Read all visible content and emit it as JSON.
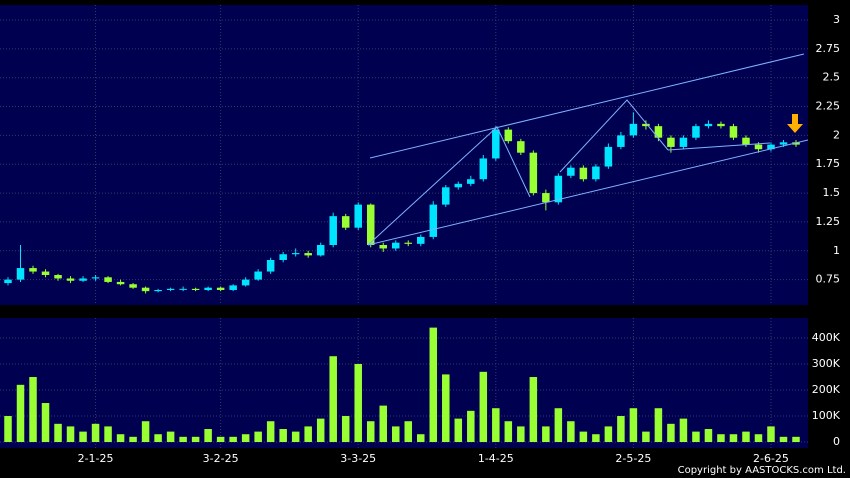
{
  "chart_data": [
    {
      "type": "candlestick",
      "categories": [
        null,
        null,
        null,
        null,
        null,
        null,
        null,
        "2-1-25",
        null,
        null,
        null,
        null,
        null,
        null,
        null,
        null,
        null,
        "3-2-25",
        null,
        null,
        null,
        null,
        null,
        null,
        null,
        null,
        null,
        null,
        "3-3-25",
        null,
        null,
        null,
        null,
        null,
        null,
        null,
        null,
        null,
        null,
        "1-4-25",
        null,
        null,
        null,
        null,
        null,
        null,
        null,
        null,
        null,
        null,
        "2-5-25",
        null,
        null,
        null,
        null,
        null,
        null,
        null,
        null,
        null,
        null,
        "2-6-25",
        null,
        null
      ],
      "open": [
        0.72,
        0.75,
        0.85,
        0.82,
        0.79,
        0.76,
        0.74,
        0.76,
        0.77,
        0.73,
        0.71,
        0.68,
        0.65,
        0.66,
        0.67,
        0.67,
        0.66,
        0.68,
        0.66,
        0.7,
        0.75,
        0.82,
        0.92,
        0.97,
        0.98,
        0.96,
        1.05,
        1.3,
        1.2,
        1.4,
        1.05,
        1.02,
        1.07,
        1.06,
        1.12,
        1.4,
        1.55,
        1.58,
        1.62,
        1.8,
        2.05,
        1.95,
        1.85,
        1.5,
        1.42,
        1.65,
        1.72,
        1.62,
        1.73,
        1.9,
        2.0,
        2.1,
        2.08,
        1.98,
        1.9,
        1.98,
        2.08,
        2.1,
        2.08,
        1.98,
        1.92,
        1.88,
        1.92,
        1.94
      ],
      "high": [
        0.77,
        1.05,
        0.87,
        0.84,
        0.8,
        0.78,
        0.78,
        0.79,
        0.78,
        0.75,
        0.72,
        0.69,
        0.67,
        0.68,
        0.69,
        0.68,
        0.69,
        0.69,
        0.71,
        0.77,
        0.84,
        0.94,
        0.99,
        1.02,
        1.0,
        1.07,
        1.33,
        1.32,
        1.42,
        1.41,
        1.07,
        1.09,
        1.09,
        1.14,
        1.43,
        1.57,
        1.6,
        1.65,
        1.83,
        2.08,
        2.07,
        1.97,
        1.87,
        1.53,
        1.67,
        1.74,
        1.74,
        1.75,
        1.93,
        2.03,
        2.2,
        2.13,
        2.1,
        2.0,
        2.0,
        2.1,
        2.13,
        2.12,
        2.1,
        2.0,
        1.94,
        1.94,
        1.96,
        1.96
      ],
      "low": [
        0.7,
        0.73,
        0.8,
        0.77,
        0.74,
        0.72,
        0.73,
        0.74,
        0.72,
        0.7,
        0.67,
        0.63,
        0.64,
        0.65,
        0.65,
        0.65,
        0.65,
        0.65,
        0.65,
        0.69,
        0.74,
        0.8,
        0.9,
        0.95,
        0.94,
        0.95,
        1.03,
        1.18,
        1.18,
        1.03,
        0.99,
        1.0,
        1.04,
        1.04,
        1.1,
        1.38,
        1.53,
        1.56,
        1.6,
        1.78,
        1.93,
        1.83,
        1.48,
        1.35,
        1.4,
        1.63,
        1.6,
        1.6,
        1.71,
        1.88,
        1.98,
        2.05,
        1.95,
        1.85,
        1.88,
        1.96,
        2.06,
        2.06,
        1.96,
        1.9,
        1.85,
        1.86,
        1.9,
        1.9
      ],
      "close": [
        0.75,
        0.85,
        0.82,
        0.79,
        0.76,
        0.74,
        0.76,
        0.77,
        0.73,
        0.71,
        0.68,
        0.65,
        0.66,
        0.67,
        0.67,
        0.66,
        0.68,
        0.66,
        0.7,
        0.75,
        0.82,
        0.92,
        0.97,
        0.98,
        0.96,
        1.05,
        1.3,
        1.2,
        1.4,
        1.05,
        1.02,
        1.07,
        1.06,
        1.12,
        1.4,
        1.55,
        1.58,
        1.62,
        1.8,
        2.05,
        1.95,
        1.85,
        1.5,
        1.42,
        1.65,
        1.72,
        1.62,
        1.73,
        1.9,
        2.0,
        2.1,
        2.08,
        1.98,
        1.9,
        1.98,
        2.08,
        2.1,
        2.08,
        1.98,
        1.92,
        1.88,
        1.92,
        1.94,
        1.92
      ],
      "up_color": "#00e5ff",
      "down_color": "#99ff33",
      "ylim": [
        0.53,
        3.13
      ],
      "yticks": [
        0.75,
        1,
        1.25,
        1.5,
        1.75,
        2,
        2.25,
        2.5,
        2.75,
        3
      ],
      "grid": true
    },
    {
      "type": "bar",
      "color": "#99ff33",
      "values": [
        100000,
        220000,
        250000,
        150000,
        70000,
        60000,
        40000,
        70000,
        60000,
        30000,
        20000,
        80000,
        30000,
        40000,
        20000,
        20000,
        50000,
        20000,
        20000,
        30000,
        40000,
        80000,
        50000,
        40000,
        60000,
        90000,
        330000,
        100000,
        300000,
        80000,
        140000,
        60000,
        80000,
        30000,
        440000,
        260000,
        90000,
        120000,
        270000,
        130000,
        80000,
        60000,
        250000,
        60000,
        130000,
        80000,
        40000,
        30000,
        60000,
        100000,
        130000,
        40000,
        130000,
        70000,
        90000,
        40000,
        50000,
        30000,
        30000,
        40000,
        30000,
        60000,
        20000,
        20000
      ],
      "ylim": [
        -23000,
        477000
      ],
      "yticks": [
        0,
        {
          "value": 100000,
          "label": "100K"
        },
        {
          "value": 200000,
          "label": "200K"
        },
        {
          "value": 300000,
          "label": "300K"
        },
        {
          "value": 400000,
          "label": "400K"
        }
      ],
      "grid": true
    }
  ],
  "footer": "Copyright by AASTOCKS.com Ltd."
}
